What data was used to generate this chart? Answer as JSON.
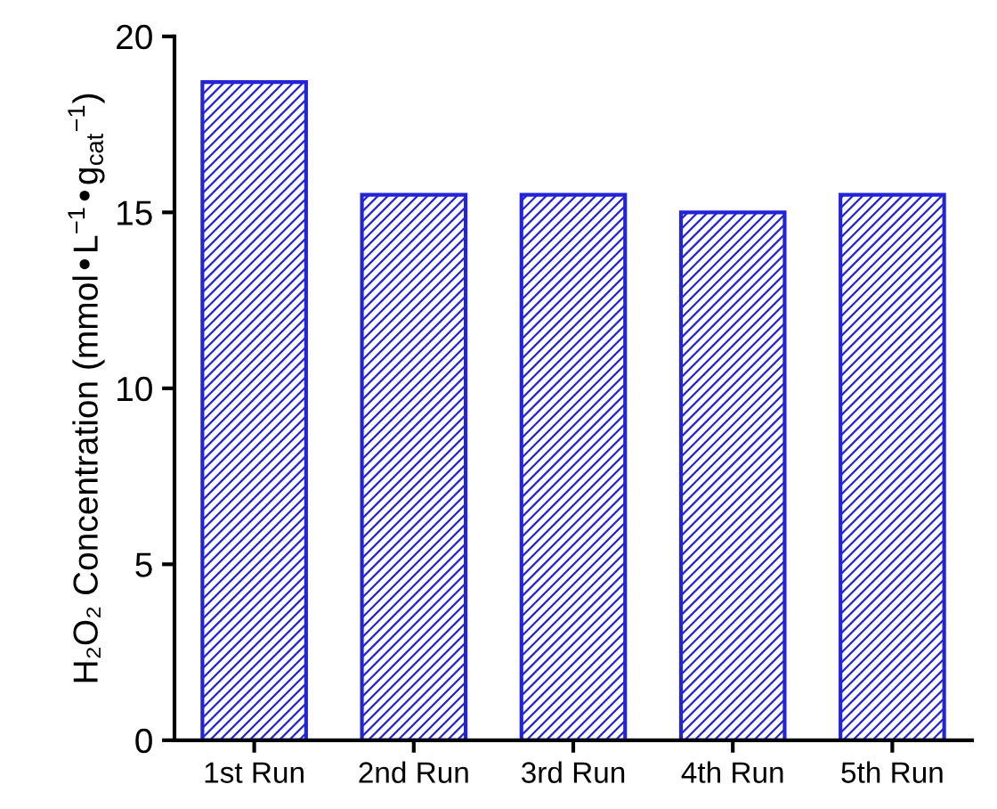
{
  "chart_data": {
    "type": "bar",
    "ylabel": "H₂O₂ Concentration (mmol•L$^{−1}$•g$_{cat}$$^{−1}$)",
    "categories": [
      "1st Run",
      "2nd Run",
      "3rd Run",
      "4th Run",
      "5th Run"
    ],
    "values": [
      18.7,
      15.5,
      15.5,
      15.0,
      15.5
    ],
    "color": "#2323d8",
    "ylim": [
      0,
      20
    ],
    "yticks": [
      0,
      5,
      10,
      15,
      20
    ],
    "grid": false
  }
}
